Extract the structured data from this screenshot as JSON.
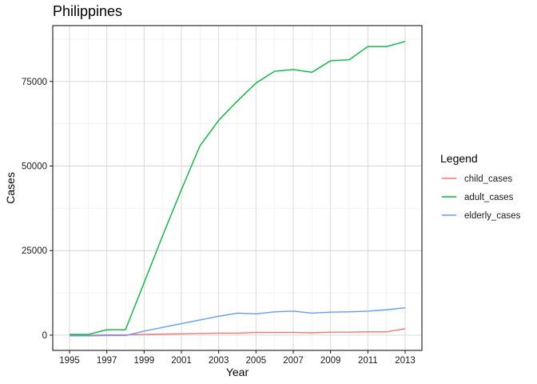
{
  "chart_data": {
    "type": "line",
    "title": "Philippines",
    "xlabel": "Year",
    "ylabel": "Cases",
    "xlim": [
      1994.1,
      2013.9
    ],
    "ylim": [
      -4500,
      91500
    ],
    "x_ticks": [
      1995,
      1997,
      1999,
      2001,
      2003,
      2005,
      2007,
      2009,
      2011,
      2013
    ],
    "y_ticks": [
      0,
      25000,
      50000,
      75000
    ],
    "y_tick_labels": [
      "0",
      "25000",
      "50000",
      "75000"
    ],
    "grid": true,
    "legend": {
      "title": "Legend",
      "position": "right"
    },
    "x": [
      1995,
      1996,
      1997,
      1998,
      1999,
      2000,
      2001,
      2002,
      2003,
      2004,
      2005,
      2006,
      2007,
      2008,
      2009,
      2010,
      2011,
      2012,
      2013
    ],
    "series": [
      {
        "name": "child_cases",
        "color": "#F8766D",
        "values": [
          0,
          0,
          100,
          100,
          200,
          300,
          400,
          500,
          600,
          600,
          800,
          800,
          800,
          700,
          900,
          900,
          1000,
          1000,
          1900
        ]
      },
      {
        "name": "adult_cases",
        "color": "#00BA38",
        "values": [
          200,
          200,
          1600,
          1600,
          15500,
          29500,
          43000,
          56000,
          63500,
          69200,
          74500,
          78000,
          78500,
          77700,
          81100,
          81400,
          85300,
          85300,
          86800
        ]
      },
      {
        "name": "elderly_cases",
        "color": "#619CFF",
        "values": [
          -200,
          -200,
          -100,
          -100,
          1200,
          2300,
          3400,
          4500,
          5600,
          6500,
          6300,
          6900,
          7100,
          6500,
          6800,
          6900,
          7100,
          7500,
          8100
        ]
      }
    ]
  }
}
